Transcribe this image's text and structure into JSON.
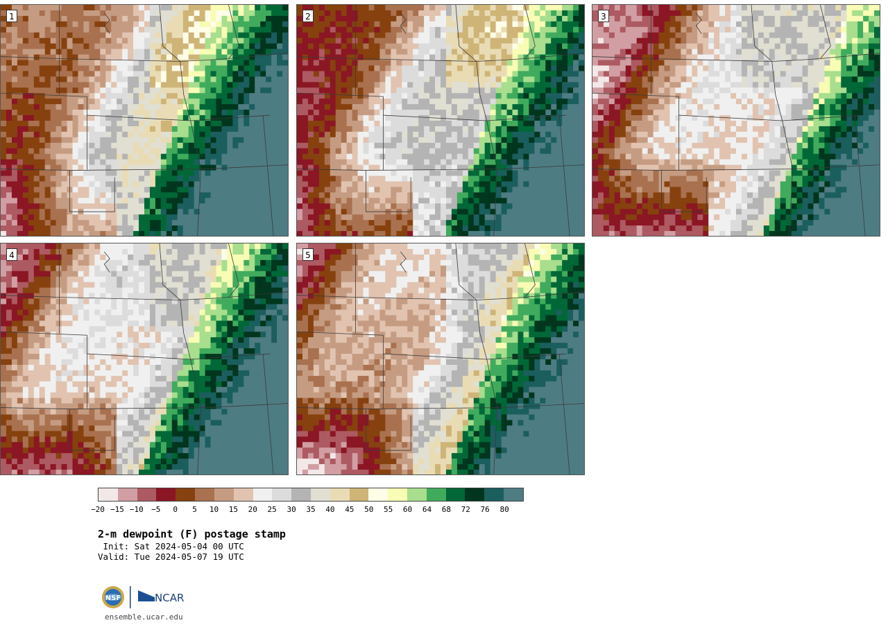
{
  "panels": [
    {
      "label": "1",
      "variant": 1
    },
    {
      "label": "2",
      "variant": 2
    },
    {
      "label": "3",
      "variant": 3
    },
    {
      "label": "4",
      "variant": 4
    },
    {
      "label": "5",
      "variant": 5
    }
  ],
  "colorbar": {
    "colors": [
      "#f3e8e8",
      "#d19ea3",
      "#ad5a62",
      "#8b1624",
      "#86410f",
      "#a9714f",
      "#c59c82",
      "#e1c3b0",
      "#f0f0f0",
      "#dcdcdc",
      "#b4b4b4",
      "#e0dfd2",
      "#e9dcb5",
      "#cfb478",
      "#fdfde8",
      "#f8fcb4",
      "#a8de8e",
      "#41ab5d",
      "#006837",
      "#00361d",
      "#1b5e5e",
      "#4e7c83"
    ],
    "tick_labels": [
      "−20",
      "−15",
      "−10",
      "−5",
      "0",
      "5",
      "10",
      "15",
      "20",
      "25",
      "30",
      "35",
      "40",
      "45",
      "50",
      "55",
      "60",
      "64",
      "68",
      "72",
      "76",
      "80"
    ]
  },
  "title": "2-m dewpoint (F) postage stamp",
  "init_text": " Init: Sat 2024-05-04 00 UTC",
  "valid_text": "Valid: Tue 2024-05-07 19 UTC",
  "logo": {
    "nsf": "NSF",
    "ncar": "NCAR"
  },
  "url": "ensemble.ucar.edu"
}
